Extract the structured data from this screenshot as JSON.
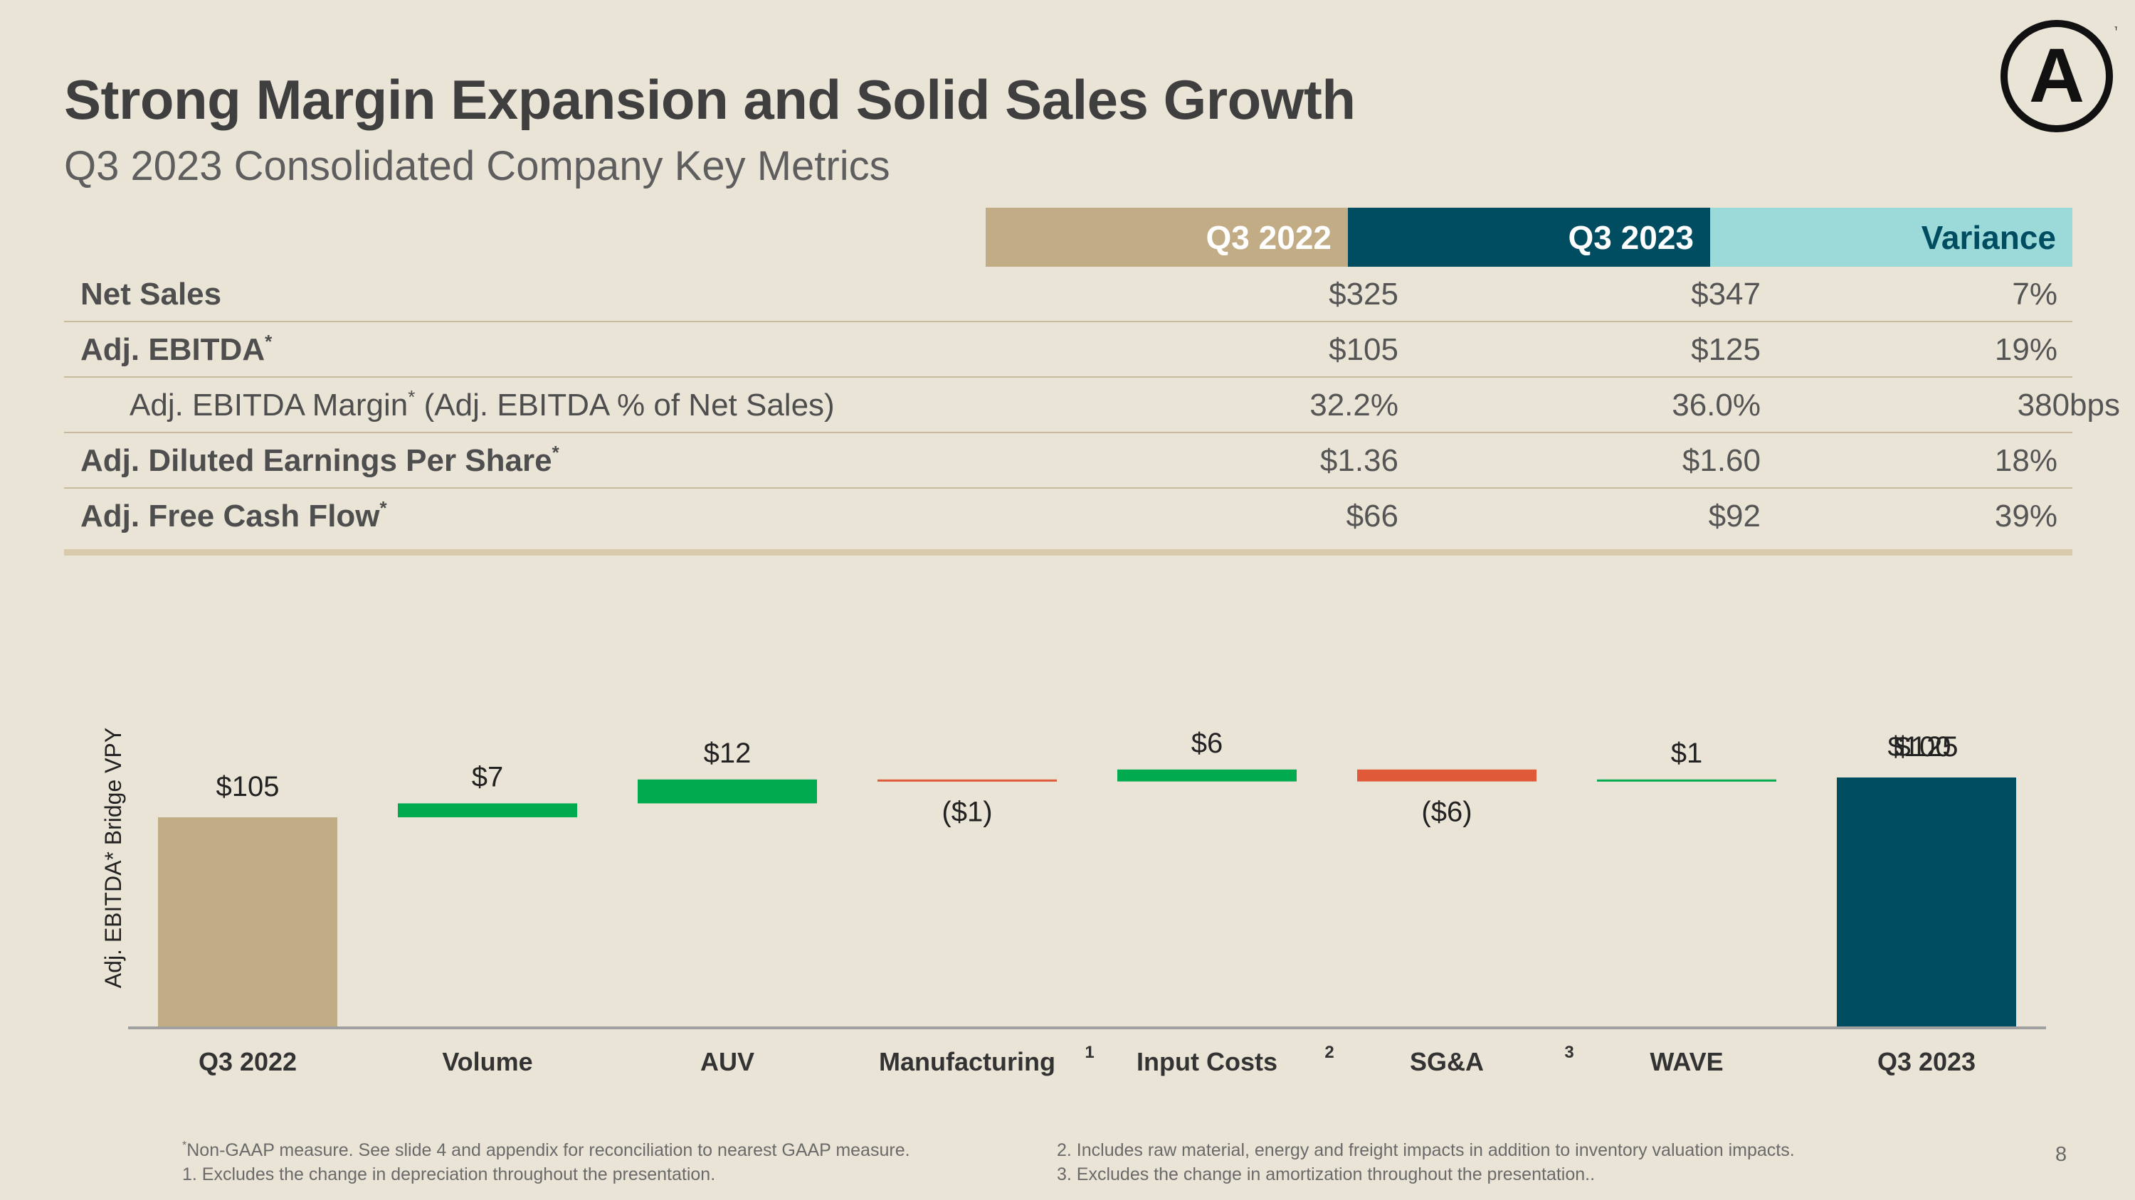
{
  "header": {
    "title": "Strong Margin Expansion and Solid Sales Growth",
    "subtitle": "Q3 2023 Consolidated Company Key Metrics",
    "logo_letter": "A",
    "logo_mark": "™"
  },
  "table": {
    "columns": [
      "Q3 2022",
      "Q3 2023",
      "Variance"
    ],
    "rows": [
      {
        "label": "Net Sales",
        "mark": "",
        "suffix": "",
        "v1": "$325",
        "v2": "$347",
        "v3": "7%"
      },
      {
        "label": "Adj. EBITDA",
        "mark": "*",
        "suffix": "",
        "v1": "$105",
        "v2": "$125",
        "v3": "19%"
      },
      {
        "label": "Adj. EBITDA Margin",
        "mark": "*",
        "suffix": " (Adj. EBITDA % of Net Sales)",
        "v1": "32.2%",
        "v2": "36.0%",
        "v3": "380bps"
      },
      {
        "label": "Adj. Diluted Earnings Per Share",
        "mark": "*",
        "suffix": "",
        "v1": "$1.36",
        "v2": "$1.60",
        "v3": "18%"
      },
      {
        "label": "Adj. Free Cash Flow",
        "mark": "*",
        "suffix": "",
        "v1": "$66",
        "v2": "$92",
        "v3": "39%"
      }
    ]
  },
  "chart_data": {
    "type": "bar",
    "subtype": "waterfall",
    "ylabel": "Adj. EBITDA* Bridge VPY",
    "categories": [
      "Q3 2022",
      "Volume",
      "AUV",
      "Manufacturing",
      "Input Costs",
      "SG&A",
      "WAVE",
      "Q3 2023"
    ],
    "superscripts": [
      "",
      "",
      "",
      "1",
      "2",
      "3",
      "",
      ""
    ],
    "values": [
      105,
      7,
      12,
      -1,
      6,
      -6,
      1,
      125
    ],
    "labels": [
      "$105",
      "$7",
      "$12",
      "($1)",
      "$6",
      "($6)",
      "$1",
      "$125"
    ],
    "extra_overlapping_label": "$100",
    "bar_kinds": [
      "total",
      "delta",
      "delta",
      "delta",
      "delta",
      "delta",
      "delta",
      "total"
    ],
    "ylim": [
      0,
      135
    ],
    "colors": {
      "start_total": "#C1AC85",
      "end_total": "#004D62",
      "increase": "#00AA4F",
      "decrease": "#E05A3A"
    }
  },
  "footnotes": {
    "left_line1_mark": "*",
    "left_line1": "Non-GAAP measure. See slide 4 and appendix for reconciliation to nearest GAAP measure.",
    "left_line2": "1. Excludes the change in depreciation throughout the presentation.",
    "right_line1": "2. Includes raw material, energy and freight impacts in addition to inventory valuation impacts.",
    "right_line2": "3. Excludes the change in amortization throughout the presentation.."
  },
  "page_number": "8"
}
